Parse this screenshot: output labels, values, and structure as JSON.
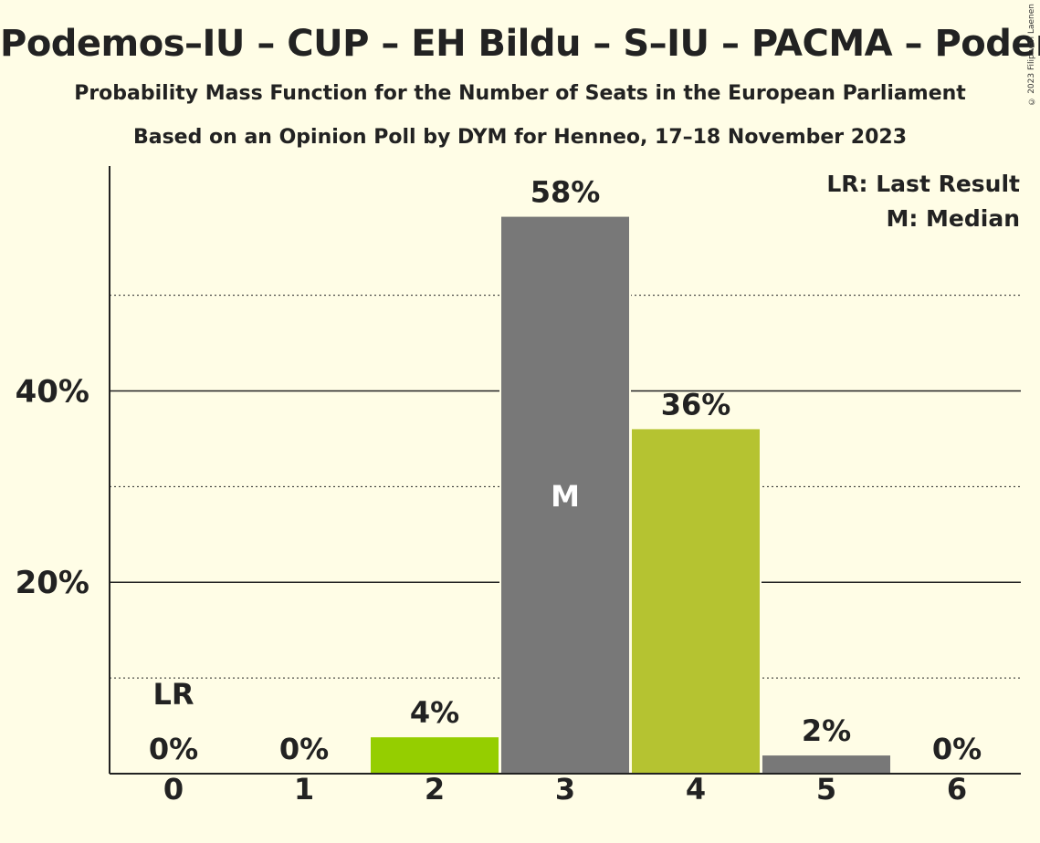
{
  "chart_data": {
    "type": "bar",
    "title": "Podemos–IU – CUP – EH Bildu – S–IU – PACMA – Podemos",
    "subtitle": "Probability Mass Function for the Number of Seats in the European Parliament",
    "subtitle2": "Based on an Opinion Poll by DYM for Henneo, 17–18 November 2023",
    "copyright": "© 2023 Filip van Laenen",
    "categories": [
      "0",
      "1",
      "2",
      "3",
      "4",
      "5",
      "6"
    ],
    "values": [
      0,
      0,
      3.8,
      58.2,
      36,
      1.9,
      0
    ],
    "value_labels": [
      "0%",
      "0%",
      "4%",
      "58%",
      "36%",
      "2%",
      "0%"
    ],
    "bar_colors": [
      "#787878",
      "#787878",
      "#95CE00",
      "#787878",
      "#B5C331",
      "#787878",
      "#787878"
    ],
    "ylim": [
      0,
      63.5
    ],
    "yticks": [
      20,
      40
    ],
    "ytick_labels": [
      "20%",
      "40%"
    ],
    "minor_gridlines": [
      10,
      30,
      50
    ],
    "last_result_index": 0,
    "last_result_label": "LR",
    "median_index": 3,
    "median_label": "M",
    "legend": [
      "LR: Last Result",
      "M: Median"
    ],
    "legend_position": "top-right"
  }
}
